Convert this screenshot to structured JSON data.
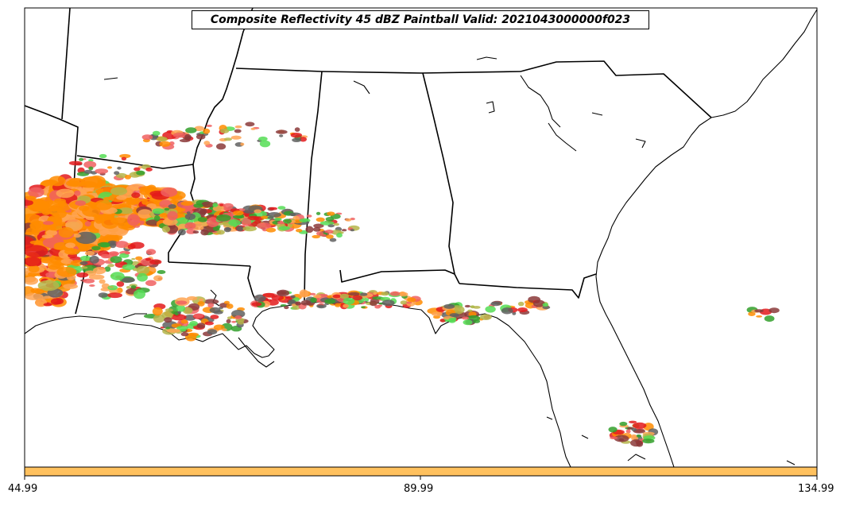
{
  "title": "Composite Reflectivity 45 dBZ Paintball Valid: 2021043000000f023",
  "colorbar": {
    "color": "#ffc15e",
    "ticks": [
      "44.99",
      "89.99",
      "134.99"
    ]
  },
  "map_features": [
    "coastline-icon",
    "state-borders-icon",
    "reflectivity-paintball-icon"
  ],
  "paintball_colors": [
    "#ff8c00",
    "#ffa552",
    "#e31a1c",
    "#f06060",
    "#8b3a3a",
    "#b5b54a",
    "#33a02c",
    "#55dd55",
    "#606060"
  ]
}
